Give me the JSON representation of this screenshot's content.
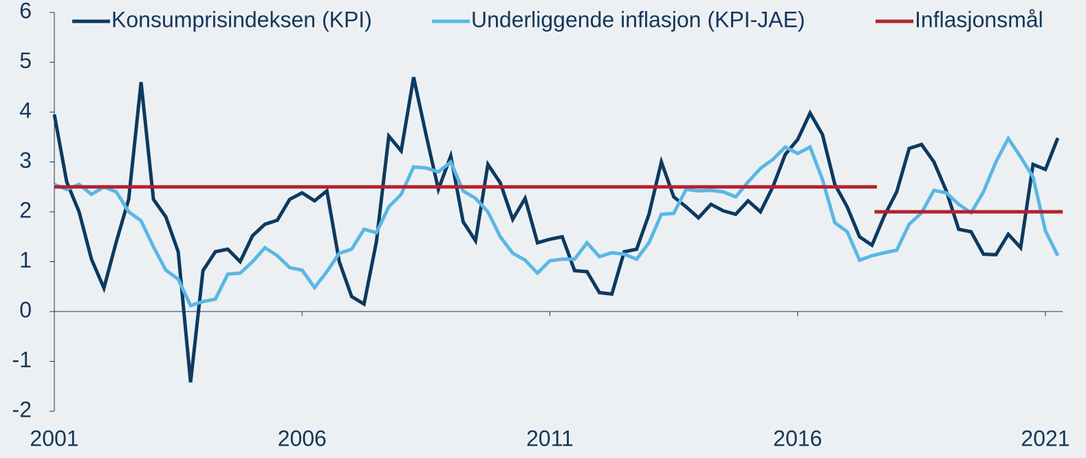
{
  "chart_data": {
    "type": "line",
    "x": [
      2001,
      2001.25,
      2001.5,
      2001.75,
      2002,
      2002.25,
      2002.5,
      2002.75,
      2003,
      2003.25,
      2003.5,
      2003.75,
      2004,
      2004.25,
      2004.5,
      2004.75,
      2005,
      2005.25,
      2005.5,
      2005.75,
      2006,
      2006.25,
      2006.5,
      2006.75,
      2007,
      2007.25,
      2007.5,
      2007.75,
      2008,
      2008.25,
      2008.5,
      2008.75,
      2009,
      2009.25,
      2009.5,
      2009.75,
      2010,
      2010.25,
      2010.5,
      2010.75,
      2011,
      2011.25,
      2011.5,
      2011.75,
      2012,
      2012.25,
      2012.5,
      2012.75,
      2013,
      2013.25,
      2013.5,
      2013.75,
      2014,
      2014.25,
      2014.5,
      2014.75,
      2015,
      2015.25,
      2015.5,
      2015.75,
      2016,
      2016.25,
      2016.5,
      2016.75,
      2017,
      2017.25,
      2017.5,
      2017.75,
      2018,
      2018.25,
      2018.5,
      2018.75,
      2019,
      2019.25,
      2019.5,
      2019.75,
      2020,
      2020.25,
      2020.5,
      2020.75,
      2021,
      2021.25
    ],
    "series": [
      {
        "name": "Konsumprisindeksen (KPI)",
        "color": "#0c3a60",
        "values": [
          3.95,
          2.6,
          2.0,
          1.05,
          0.47,
          1.4,
          2.25,
          4.6,
          2.25,
          1.9,
          1.2,
          -1.42,
          0.82,
          1.2,
          1.25,
          1.0,
          1.52,
          1.75,
          1.83,
          2.25,
          2.38,
          2.22,
          2.42,
          1.0,
          0.3,
          0.15,
          1.4,
          3.52,
          3.22,
          4.7,
          3.55,
          2.45,
          3.12,
          1.8,
          1.42,
          2.95,
          2.58,
          1.85,
          2.27,
          1.38,
          1.45,
          1.5,
          0.82,
          0.8,
          0.38,
          0.35,
          1.2,
          1.25,
          1.95,
          3.0,
          2.3,
          2.1,
          1.88,
          2.15,
          2.02,
          1.95,
          2.22,
          2.0,
          2.5,
          3.15,
          3.45,
          3.98,
          3.55,
          2.55,
          2.1,
          1.5,
          1.33,
          1.92,
          2.4,
          3.27,
          3.35,
          3.0,
          2.42,
          1.65,
          1.6,
          1.15,
          1.14,
          1.55,
          1.28,
          2.95,
          2.85,
          3.48
        ]
      },
      {
        "name": "Underliggende inflasjon (KPI-JAE)",
        "color": "#5ab7e5",
        "values": [
          2.55,
          2.45,
          2.55,
          2.35,
          2.5,
          2.4,
          2.0,
          1.82,
          1.3,
          0.83,
          0.65,
          0.12,
          0.2,
          0.25,
          0.75,
          0.77,
          1.0,
          1.28,
          1.12,
          0.88,
          0.83,
          0.48,
          0.8,
          1.17,
          1.25,
          1.65,
          1.58,
          2.1,
          2.35,
          2.9,
          2.88,
          2.8,
          3.0,
          2.42,
          2.27,
          2.0,
          1.5,
          1.17,
          1.03,
          0.77,
          1.02,
          1.05,
          1.05,
          1.38,
          1.1,
          1.18,
          1.15,
          1.05,
          1.38,
          1.95,
          1.97,
          2.45,
          2.42,
          2.43,
          2.4,
          2.3,
          2.6,
          2.87,
          3.05,
          3.3,
          3.17,
          3.3,
          2.65,
          1.78,
          1.6,
          1.03,
          1.12,
          1.18,
          1.23,
          1.75,
          1.98,
          2.43,
          2.38,
          2.15,
          1.98,
          2.4,
          3.0,
          3.47,
          3.1,
          2.7,
          1.62,
          1.12
        ]
      },
      {
        "name": "Inflasjonsmål",
        "color": "#b3212f",
        "x": [
          2001,
          2017.6,
          2017.6,
          2017.55,
          2021.35
        ],
        "values": [
          2.5,
          2.5,
          null,
          2,
          2
        ]
      }
    ],
    "xlim": [
      2001,
      2021.35
    ],
    "xticks": [
      2001,
      2006,
      2011,
      2016,
      2021
    ],
    "ylim": [
      -2,
      6
    ],
    "yticks": [
      -2,
      -1,
      0,
      1,
      2,
      3,
      4,
      5,
      6
    ]
  }
}
